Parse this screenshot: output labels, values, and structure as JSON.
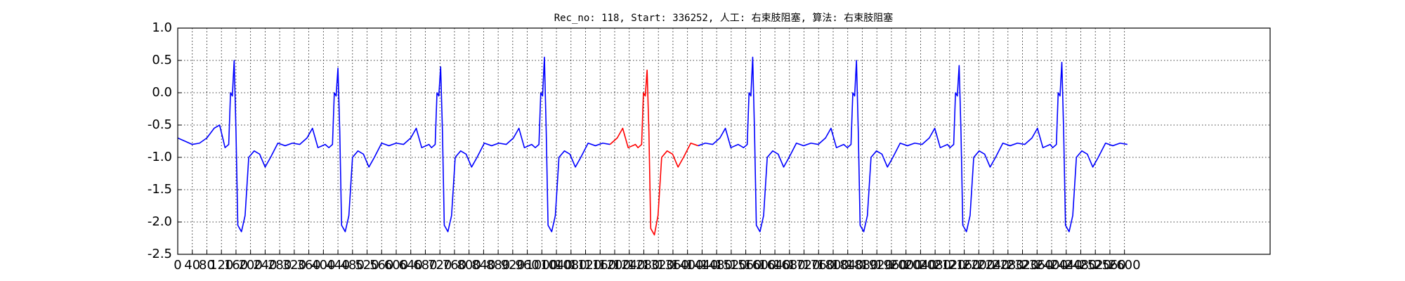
{
  "chart_data": {
    "type": "line",
    "title": "Rec_no: 118, Start: 336252, 人工: 右束肢阻塞, 算法: 右束肢阻塞",
    "xlim": [
      0,
      3000
    ],
    "ylim": [
      -2.5,
      1.0
    ],
    "grid": true,
    "yticks": [
      -2.5,
      {
        "value": -2,
        "label": "-2.0"
      },
      -1.5,
      {
        "value": -1,
        "label": "-1.0"
      },
      -0.5,
      {
        "value": 0,
        "label": "0.0"
      },
      0.5,
      {
        "value": 1,
        "label": "1.0"
      }
    ],
    "xticks": [
      0,
      40,
      80,
      120,
      160,
      200,
      240,
      280,
      320,
      360,
      400,
      440,
      480,
      520,
      560,
      600,
      640,
      680,
      720,
      760,
      800,
      840,
      880,
      920,
      960,
      1000,
      1040,
      1080,
      1120,
      1160,
      1200,
      1240,
      1280,
      1320,
      1360,
      1400,
      1440,
      1480,
      1520,
      1560,
      1600,
      1640,
      1680,
      1720,
      1760,
      1800,
      1840,
      1880,
      1920,
      1960,
      2000,
      2040,
      2080,
      2120,
      2160,
      2200,
      2240,
      2280,
      2320,
      2360,
      2400,
      2440,
      2480,
      2520,
      2560,
      2600
    ],
    "series": [
      {
        "color": "#0000ff",
        "x": [
          0,
          20,
          40,
          60,
          80,
          100,
          115,
          130,
          140,
          145,
          150,
          155,
          160,
          165,
          175,
          185,
          195,
          210,
          225,
          240,
          255,
          275,
          295,
          315,
          335,
          355,
          370,
          385,
          405,
          415,
          425,
          430,
          435,
          440,
          445,
          450,
          460,
          470,
          480,
          495,
          510,
          525,
          540,
          560,
          580,
          600,
          620,
          640,
          655,
          670,
          690,
          697,
          707,
          712,
          717,
          722,
          727,
          732,
          742,
          752,
          762,
          777,
          792,
          807,
          822,
          842,
          862,
          882,
          902,
          922,
          937,
          952,
          972,
          982,
          992,
          997,
          1002,
          1007,
          1012,
          1017,
          1027,
          1037,
          1047,
          1062,
          1077,
          1092,
          1107,
          1127,
          1147,
          1167,
          1187,
          1289,
          1429,
          1449,
          1469,
          1489,
          1504,
          1519,
          1539,
          1554,
          1564,
          1569,
          1574,
          1579,
          1584,
          1589,
          1599,
          1609,
          1619,
          1634,
          1649,
          1664,
          1679,
          1699,
          1719,
          1739,
          1759,
          1779,
          1794,
          1809,
          1829,
          1839,
          1849,
          1854,
          1859,
          1864,
          1869,
          1874,
          1884,
          1894,
          1904,
          1919,
          1934,
          1949,
          1964,
          1984,
          2004,
          2024,
          2044,
          2064,
          2079,
          2094,
          2114,
          2121,
          2131,
          2136,
          2141,
          2146,
          2151,
          2156,
          2166,
          2176,
          2186,
          2201,
          2216,
          2231,
          2246,
          2266,
          2286,
          2306,
          2326,
          2346,
          2361,
          2376,
          2396,
          2403,
          2413,
          2418,
          2423,
          2428,
          2433,
          2438,
          2448,
          2458,
          2468,
          2483,
          2498,
          2513,
          2528,
          2548,
          2568,
          2588,
          2608
        ],
        "values": [
          -0.7,
          -0.75,
          -0.8,
          -0.78,
          -0.7,
          -0.55,
          -0.5,
          -0.85,
          -0.8,
          0.0,
          -0.05,
          0.5,
          -0.6,
          -2.05,
          -2.15,
          -1.9,
          -1.0,
          -0.9,
          -0.95,
          -1.15,
          -1.0,
          -0.78,
          -0.82,
          -0.78,
          -0.8,
          -0.7,
          -0.55,
          -0.85,
          -0.8,
          -0.85,
          -0.8,
          0.0,
          -0.05,
          0.38,
          -0.6,
          -2.05,
          -2.15,
          -1.9,
          -1.0,
          -0.9,
          -0.95,
          -1.15,
          -1.0,
          -0.78,
          -0.82,
          -0.78,
          -0.8,
          -0.7,
          -0.55,
          -0.85,
          -0.8,
          -0.85,
          -0.8,
          0.0,
          -0.05,
          0.4,
          -0.6,
          -2.05,
          -2.15,
          -1.9,
          -1.0,
          -0.9,
          -0.95,
          -1.15,
          -1.0,
          -0.78,
          -0.82,
          -0.78,
          -0.8,
          -0.7,
          -0.55,
          -0.85,
          -0.8,
          -0.85,
          -0.8,
          0.0,
          -0.05,
          0.55,
          -0.6,
          -2.05,
          -2.15,
          -1.9,
          -1.0,
          -0.9,
          -0.95,
          -1.15,
          -1.0,
          -0.78,
          -0.82,
          -0.78,
          -0.8,
          null,
          -0.82,
          -0.78,
          -0.8,
          -0.7,
          -0.55,
          -0.85,
          -0.8,
          -0.85,
          -0.8,
          0.0,
          -0.05,
          0.55,
          -0.6,
          -2.05,
          -2.15,
          -1.9,
          -1.0,
          -0.9,
          -0.95,
          -1.15,
          -1.0,
          -0.78,
          -0.82,
          -0.78,
          -0.8,
          -0.7,
          -0.55,
          -0.85,
          -0.8,
          -0.85,
          -0.8,
          0.0,
          -0.05,
          0.5,
          -0.6,
          -2.05,
          -2.15,
          -1.9,
          -1.0,
          -0.9,
          -0.95,
          -1.15,
          -1.0,
          -0.78,
          -0.82,
          -0.78,
          -0.8,
          -0.7,
          -0.55,
          -0.85,
          -0.8,
          -0.85,
          -0.8,
          0.0,
          -0.05,
          0.42,
          -0.6,
          -2.05,
          -2.15,
          -1.9,
          -1.0,
          -0.9,
          -0.95,
          -1.15,
          -1.0,
          -0.78,
          -0.82,
          -0.78,
          -0.8,
          -0.7,
          -0.55,
          -0.85,
          -0.8,
          -0.85,
          -0.8,
          0.0,
          -0.05,
          0.47,
          -0.6,
          -2.05,
          -2.15,
          -1.9,
          -1.0,
          -0.9,
          -0.95,
          -1.15,
          -1.0,
          -0.78,
          -0.82,
          -0.78,
          -0.8
        ]
      },
      {
        "color": "#ff0000",
        "x": [
          1187,
          1207,
          1222,
          1237,
          1257,
          1264,
          1274,
          1279,
          1284,
          1289,
          1294,
          1299,
          1309,
          1319,
          1329,
          1344,
          1359,
          1374,
          1389,
          1409,
          1429
        ],
        "values": [
          -0.8,
          -0.7,
          -0.55,
          -0.85,
          -0.8,
          -0.85,
          -0.8,
          0.0,
          -0.05,
          0.35,
          -0.6,
          -2.1,
          -2.2,
          -1.9,
          -1.0,
          -0.9,
          -0.95,
          -1.15,
          -1.0,
          -0.78,
          -0.82
        ]
      }
    ]
  }
}
